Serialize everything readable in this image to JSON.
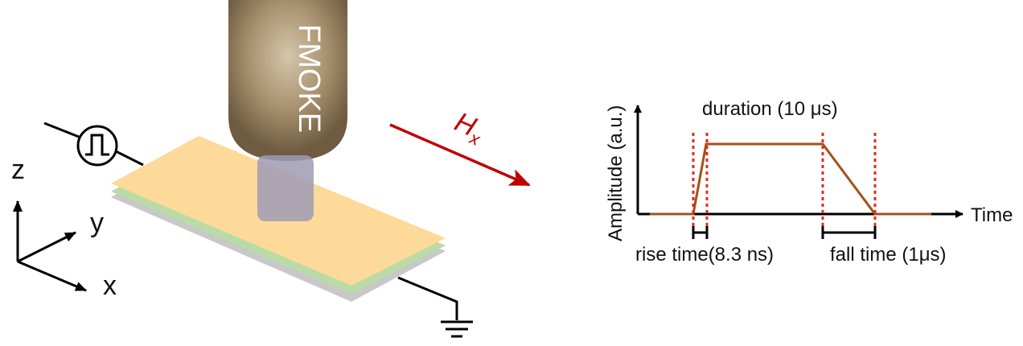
{
  "colors": {
    "probe_top": "#8a7355",
    "probe_mid": "#d2c3a6",
    "layer_top": "#fdd99a",
    "layer_mid": "#b9dca6",
    "layer_bottom": "#c8c8c8",
    "field_arrow": "#c00000",
    "pulse_line": "#a0521c",
    "dotted_marker": "#e8281a",
    "ink": "#000000"
  },
  "setup": {
    "probe_label": "FMOKE",
    "field_label_main": "H",
    "field_label_sub": "x",
    "axis_z": "z",
    "axis_y": "y",
    "axis_x": "x",
    "icons": [
      "pulse-generator-icon",
      "ground-icon"
    ]
  },
  "pulse_plot": {
    "ylabel": "Amplitude (a.u.)",
    "xlabel": "Time",
    "duration_label": "duration (10 μs)",
    "rise_label": "rise time(8.3 ns)",
    "fall_label": "fall time (1μs)",
    "fall_label_close": ")"
  }
}
